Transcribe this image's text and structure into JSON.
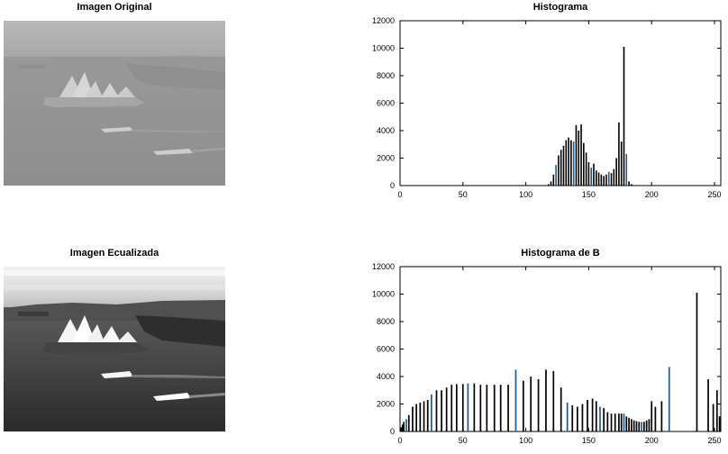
{
  "images": [
    {
      "title": "Imagen Original",
      "image_desc": "grayscale photo of harbour with opera house, ferries, city skyline",
      "tone": "low-contrast"
    },
    {
      "title": "Imagen Ecualizada",
      "image_desc": "same harbour photo after histogram equalization",
      "tone": "high-contrast"
    }
  ],
  "chart_data": [
    {
      "type": "bar",
      "title": "Histograma",
      "xlabel": "",
      "ylabel": "",
      "xlim": [
        0,
        255
      ],
      "ylim": [
        0,
        12000
      ],
      "xticks": [
        0,
        50,
        100,
        150,
        200,
        250
      ],
      "yticks": [
        0,
        2000,
        4000,
        6000,
        8000,
        10000,
        12000
      ],
      "bar_color": "#000000",
      "edge_color": "#1f5a8f",
      "x": [
        118,
        120,
        122,
        124,
        126,
        128,
        130,
        132,
        134,
        136,
        138,
        140,
        142,
        144,
        146,
        148,
        150,
        152,
        154,
        156,
        158,
        160,
        162,
        164,
        166,
        168,
        170,
        172,
        174,
        176,
        178,
        180,
        182,
        184
      ],
      "values": [
        100,
        300,
        800,
        1500,
        2200,
        2600,
        2900,
        3300,
        3500,
        3300,
        3200,
        4400,
        4000,
        4450,
        3100,
        2400,
        1700,
        1300,
        1600,
        1100,
        950,
        800,
        700,
        800,
        1000,
        900,
        1200,
        2000,
        4600,
        3200,
        10100,
        2300,
        300,
        100
      ]
    },
    {
      "type": "bar",
      "title": "Histograma de B",
      "xlabel": "",
      "ylabel": "",
      "xlim": [
        0,
        255
      ],
      "ylim": [
        0,
        12000
      ],
      "xticks": [
        0,
        50,
        100,
        150,
        200,
        250
      ],
      "yticks": [
        0,
        2000,
        4000,
        6000,
        8000,
        10000,
        12000
      ],
      "bar_color": "#000000",
      "edge_color": "#1f5a8f",
      "x": [
        1,
        2,
        3,
        5,
        7,
        10,
        13,
        16,
        19,
        22,
        25,
        29,
        33,
        37,
        41,
        45,
        50,
        54,
        59,
        64,
        69,
        75,
        80,
        86,
        92,
        98,
        104,
        110,
        116,
        122,
        128,
        133,
        137,
        141,
        145,
        149,
        153,
        156,
        159,
        162,
        165,
        168,
        171,
        174,
        176,
        178,
        180,
        182,
        184,
        186,
        188,
        190,
        192,
        194,
        196,
        198,
        200,
        203,
        208,
        214,
        236,
        245,
        249,
        252,
        254
      ],
      "values": [
        300,
        500,
        700,
        900,
        1200,
        1800,
        2000,
        2100,
        2200,
        2300,
        2700,
        3000,
        3000,
        3200,
        3400,
        3450,
        3450,
        3500,
        3500,
        3400,
        3400,
        3400,
        3400,
        3400,
        4500,
        3700,
        4000,
        3800,
        4500,
        4400,
        3200,
        2100,
        1900,
        1800,
        2000,
        2300,
        2400,
        2200,
        1800,
        1700,
        1400,
        1300,
        1300,
        1300,
        1300,
        1300,
        1100,
        1000,
        900,
        800,
        750,
        700,
        700,
        700,
        800,
        900,
        2200,
        1800,
        2200,
        4700,
        10100,
        3800,
        2000,
        3000,
        1100
      ]
    }
  ]
}
